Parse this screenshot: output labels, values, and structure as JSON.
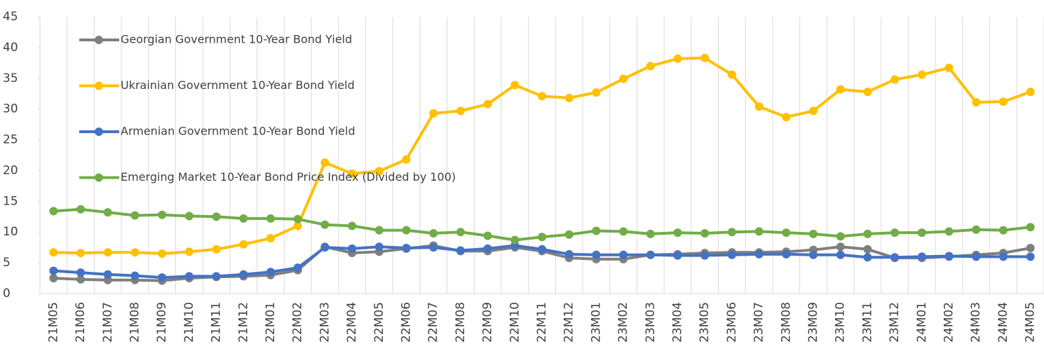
{
  "chart_data": {
    "type": "line",
    "categories": [
      "21M05",
      "21M06",
      "21M07",
      "21M08",
      "21M09",
      "21M10",
      "21M11",
      "21M12",
      "22M01",
      "22M02",
      "22M03",
      "22M04",
      "22M05",
      "22M06",
      "22M07",
      "22M08",
      "22M09",
      "22M10",
      "22M11",
      "22M12",
      "23M01",
      "23M02",
      "23M03",
      "23M04",
      "23M05",
      "23M06",
      "23M07",
      "23M08",
      "23M09",
      "23M10",
      "23M11",
      "23M12",
      "24M01",
      "24M02",
      "24M03",
      "24M04",
      "24M05"
    ],
    "series": [
      {
        "name": "Georgian Government 10-Year Bond Yield",
        "color": "#7f7f7f",
        "values": [
          2.5,
          2.3,
          2.2,
          2.2,
          2.1,
          2.5,
          2.7,
          2.8,
          3.0,
          3.8,
          7.6,
          6.6,
          6.8,
          7.3,
          7.8,
          6.9,
          6.9,
          7.5,
          6.9,
          5.8,
          5.6,
          5.6,
          6.3,
          6.4,
          6.6,
          6.7,
          6.7,
          6.8,
          7.1,
          7.6,
          7.2,
          5.8,
          5.8,
          6.0,
          6.3,
          6.6,
          7.4
        ]
      },
      {
        "name": "Ukrainian Government 10-Year Bond Yield",
        "color": "#ffc000",
        "values": [
          6.7,
          6.6,
          6.7,
          6.7,
          6.5,
          6.8,
          7.2,
          8.0,
          9.0,
          11.0,
          21.3,
          19.5,
          19.9,
          21.8,
          29.3,
          29.7,
          30.8,
          33.9,
          32.1,
          31.8,
          32.7,
          34.9,
          37.0,
          38.2,
          38.3,
          35.6,
          30.4,
          28.7,
          29.7,
          33.2,
          32.8,
          34.8,
          35.6,
          36.7,
          31.1,
          31.2,
          32.8
        ]
      },
      {
        "name": "Armenian Government 10-Year Bond Yield",
        "color": "#4472c4",
        "values": [
          3.7,
          3.4,
          3.1,
          2.9,
          2.6,
          2.8,
          2.8,
          3.1,
          3.5,
          4.2,
          7.5,
          7.3,
          7.6,
          7.4,
          7.5,
          7.0,
          7.3,
          7.8,
          7.2,
          6.4,
          6.3,
          6.3,
          6.3,
          6.2,
          6.2,
          6.3,
          6.4,
          6.4,
          6.3,
          6.3,
          5.9,
          5.9,
          6.0,
          6.1,
          6.0,
          6.0,
          6.0
        ]
      },
      {
        "name": "Emerging Market 10-Year Bond Price Index (Divided by 100)",
        "color": "#70ad47",
        "values": [
          13.4,
          13.7,
          13.2,
          12.7,
          12.8,
          12.6,
          12.5,
          12.2,
          12.2,
          12.1,
          11.2,
          11.0,
          10.3,
          10.3,
          9.8,
          10.0,
          9.4,
          8.7,
          9.2,
          9.6,
          10.2,
          10.1,
          9.7,
          9.9,
          9.8,
          10.0,
          10.1,
          9.9,
          9.7,
          9.3,
          9.7,
          9.9,
          9.9,
          10.1,
          10.4,
          10.3,
          10.8
        ]
      }
    ],
    "ylim": [
      0,
      45
    ],
    "yticks": [
      0,
      5,
      10,
      15,
      20,
      25,
      30,
      35,
      40,
      45
    ],
    "legend": "upper left"
  }
}
